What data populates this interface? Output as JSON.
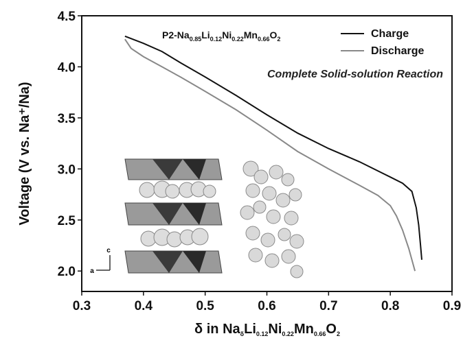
{
  "chart_data": {
    "type": "line",
    "xlabel": {
      "prefix": "δ  in Na",
      "parts": [
        [
          "δ",
          "sub"
        ],
        [
          "Li",
          ""
        ],
        [
          "0.12",
          "sub"
        ],
        [
          "Ni",
          ""
        ],
        [
          "0.22",
          "sub"
        ],
        [
          "Mn",
          ""
        ],
        [
          "0.66",
          "sub"
        ],
        [
          "O",
          ""
        ],
        [
          "2",
          "sub"
        ]
      ]
    },
    "ylabel": "Voltage (V vs. Na⁺/Na)",
    "xlim": [
      0.3,
      0.9
    ],
    "ylim": [
      1.8,
      4.5
    ],
    "x_ticks": [
      "0.3",
      "0.4",
      "0.5",
      "0.6",
      "0.7",
      "0.8",
      "0.9"
    ],
    "y_ticks": [
      "2.0",
      "2.5",
      "3.0",
      "3.5",
      "4.0",
      "4.5"
    ],
    "legend_position": "top-right",
    "formula": [
      [
        "P2-Na",
        ""
      ],
      [
        "0.85",
        "sub"
      ],
      [
        "Li",
        ""
      ],
      [
        "0.12",
        "sub"
      ],
      [
        "Ni",
        ""
      ],
      [
        "0.22",
        "sub"
      ],
      [
        "Mn",
        ""
      ],
      [
        "0.66",
        "sub"
      ],
      [
        "O",
        ""
      ],
      [
        "2",
        "sub"
      ]
    ],
    "annotation": "Complete Solid-solution Reaction",
    "series": [
      {
        "name": "Charge",
        "color": "#111111",
        "x": [
          0.37,
          0.4,
          0.43,
          0.46,
          0.5,
          0.55,
          0.6,
          0.65,
          0.7,
          0.75,
          0.8,
          0.82,
          0.835,
          0.842,
          0.846,
          0.849,
          0.851
        ],
        "y": [
          4.3,
          4.23,
          4.15,
          4.04,
          3.9,
          3.72,
          3.53,
          3.35,
          3.2,
          3.07,
          2.92,
          2.86,
          2.78,
          2.62,
          2.45,
          2.25,
          2.11
        ]
      },
      {
        "name": "Discharge",
        "color": "#888888",
        "x": [
          0.37,
          0.38,
          0.4,
          0.43,
          0.46,
          0.5,
          0.55,
          0.6,
          0.65,
          0.7,
          0.75,
          0.78,
          0.8,
          0.81,
          0.82,
          0.83,
          0.84
        ],
        "y": [
          4.27,
          4.18,
          4.1,
          4.0,
          3.9,
          3.76,
          3.58,
          3.38,
          3.17,
          3.0,
          2.84,
          2.74,
          2.64,
          2.54,
          2.4,
          2.22,
          2.0
        ]
      }
    ]
  }
}
